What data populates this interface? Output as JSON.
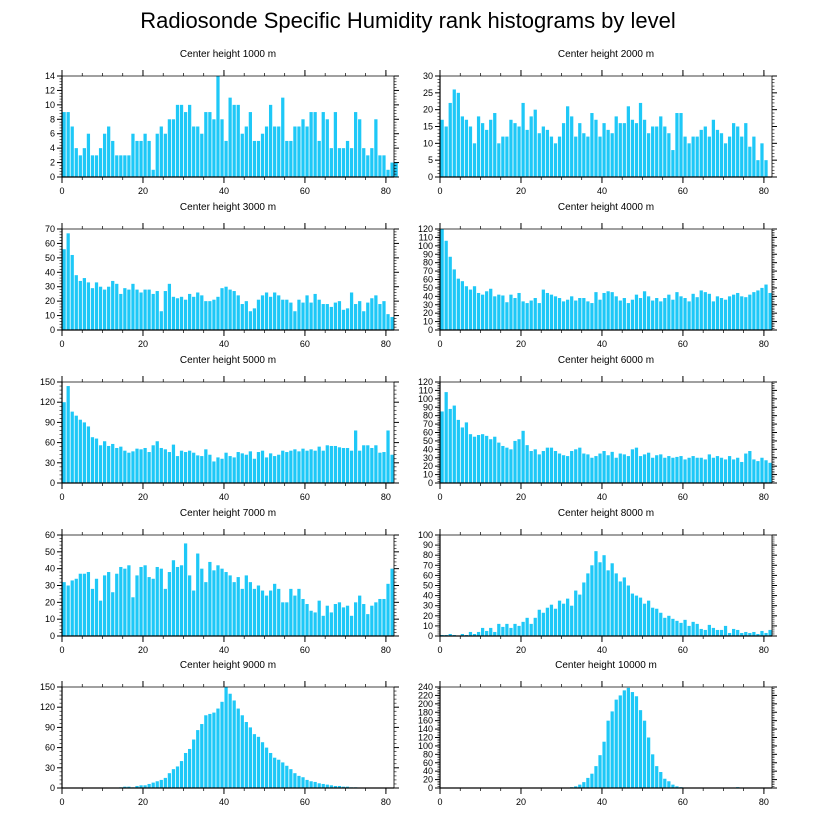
{
  "title": "Radiosonde Specific Humidity rank histograms by level",
  "bar_color": "#1ec8f7",
  "chart_data": [
    {
      "type": "bar",
      "title": "Center height 1000 m",
      "xlim": [
        0,
        82
      ],
      "xticks": [
        0,
        20,
        40,
        60,
        80
      ],
      "ylim": [
        0,
        14
      ],
      "yticks": [
        0,
        2,
        4,
        6,
        8,
        10,
        12,
        14
      ],
      "values": [
        9,
        9,
        7,
        4,
        3,
        4,
        6,
        3,
        3,
        4,
        6,
        7,
        5,
        3,
        3,
        3,
        3,
        6,
        5,
        5,
        6,
        5,
        1,
        6,
        7,
        6,
        8,
        8,
        10,
        10,
        9,
        10,
        7,
        7,
        6,
        9,
        9,
        8,
        14,
        8,
        5,
        11,
        10,
        10,
        6,
        7,
        9,
        5,
        5,
        6,
        7,
        10,
        7,
        7,
        11,
        5,
        5,
        7,
        7,
        8,
        7,
        9,
        9,
        5,
        9,
        8,
        4,
        9,
        4,
        4,
        5,
        4,
        9,
        8,
        4,
        3,
        4,
        8,
        3,
        3,
        1,
        2,
        2
      ]
    },
    {
      "type": "bar",
      "title": "Center height 2000 m",
      "xlim": [
        0,
        82
      ],
      "xticks": [
        0,
        20,
        40,
        60,
        80
      ],
      "ylim": [
        0,
        30
      ],
      "yticks": [
        0,
        5,
        10,
        15,
        20,
        25,
        30
      ],
      "values": [
        17,
        15,
        22,
        26,
        25,
        18,
        17,
        15,
        10,
        18,
        16,
        14,
        17,
        19,
        10,
        12,
        12,
        17,
        16,
        15,
        22,
        14,
        18,
        20,
        13,
        15,
        14,
        12,
        10,
        12,
        16,
        21,
        18,
        12,
        16,
        13,
        12,
        19,
        17,
        12,
        16,
        14,
        13,
        18,
        16,
        16,
        21,
        17,
        16,
        22,
        17,
        13,
        15,
        15,
        18,
        15,
        13,
        8,
        19,
        19,
        12,
        10,
        12,
        12,
        14,
        15,
        12,
        17,
        14,
        13,
        10,
        12,
        16,
        15,
        12,
        16,
        9,
        12,
        5,
        10,
        5
      ]
    },
    {
      "type": "bar",
      "title": "Center height 3000 m",
      "xlim": [
        0,
        82
      ],
      "xticks": [
        0,
        20,
        40,
        60,
        80
      ],
      "ylim": [
        0,
        70
      ],
      "yticks": [
        0,
        10,
        20,
        30,
        40,
        50,
        60,
        70
      ],
      "values": [
        56,
        67,
        52,
        38,
        34,
        36,
        33,
        29,
        33,
        30,
        28,
        30,
        34,
        32,
        25,
        29,
        28,
        32,
        28,
        26,
        28,
        28,
        25,
        27,
        13,
        27,
        32,
        23,
        22,
        23,
        21,
        25,
        23,
        26,
        24,
        20,
        20,
        21,
        23,
        29,
        30,
        28,
        27,
        24,
        18,
        20,
        13,
        15,
        21,
        24,
        26,
        23,
        26,
        24,
        21,
        21,
        19,
        13,
        21,
        19,
        24,
        19,
        25,
        21,
        18,
        18,
        16,
        19,
        20,
        14,
        15,
        26,
        18,
        20,
        13,
        19,
        22,
        24,
        18,
        20,
        11,
        9
      ]
    },
    {
      "type": "bar",
      "title": "Center height 4000 m",
      "xlim": [
        0,
        82
      ],
      "xticks": [
        0,
        20,
        40,
        60,
        80
      ],
      "ylim": [
        0,
        120
      ],
      "yticks": [
        0,
        10,
        20,
        30,
        40,
        50,
        60,
        70,
        80,
        90,
        100,
        110,
        120
      ],
      "values": [
        120,
        106,
        87,
        72,
        61,
        58,
        52,
        48,
        52,
        44,
        42,
        46,
        49,
        40,
        42,
        41,
        33,
        42,
        38,
        44,
        34,
        32,
        35,
        38,
        32,
        48,
        44,
        42,
        40,
        38,
        34,
        36,
        40,
        35,
        38,
        38,
        34,
        32,
        45,
        36,
        44,
        46,
        45,
        40,
        35,
        38,
        32,
        36,
        42,
        38,
        46,
        40,
        35,
        38,
        34,
        38,
        42,
        36,
        45,
        40,
        38,
        34,
        43,
        39,
        47,
        45,
        43,
        34,
        40,
        38,
        36,
        40,
        42,
        44,
        40,
        39,
        42,
        45,
        47,
        50,
        54,
        44
      ]
    },
    {
      "type": "bar",
      "title": "Center height 5000 m",
      "xlim": [
        0,
        82
      ],
      "xticks": [
        0,
        20,
        40,
        60,
        80
      ],
      "ylim": [
        0,
        150
      ],
      "yticks": [
        0,
        30,
        60,
        90,
        120,
        150
      ],
      "values": [
        120,
        144,
        106,
        100,
        94,
        90,
        84,
        68,
        66,
        56,
        62,
        55,
        58,
        52,
        54,
        48,
        45,
        47,
        51,
        50,
        52,
        46,
        56,
        62,
        52,
        50,
        46,
        57,
        40,
        48,
        46,
        48,
        45,
        41,
        40,
        50,
        42,
        32,
        38,
        36,
        45,
        40,
        38,
        46,
        44,
        42,
        47,
        36,
        46,
        48,
        38,
        44,
        40,
        42,
        48,
        46,
        48,
        50,
        47,
        51,
        48,
        50,
        48,
        54,
        48,
        56,
        55,
        55,
        53,
        52,
        52,
        48,
        78,
        48,
        56,
        56,
        52,
        56,
        45,
        46,
        78,
        42
      ]
    },
    {
      "type": "bar",
      "title": "Center height 6000 m",
      "xlim": [
        0,
        82
      ],
      "xticks": [
        0,
        20,
        40,
        60,
        80
      ],
      "ylim": [
        0,
        120
      ],
      "yticks": [
        0,
        10,
        20,
        30,
        40,
        50,
        60,
        70,
        80,
        90,
        100,
        110,
        120
      ],
      "values": [
        85,
        108,
        88,
        92,
        75,
        66,
        72,
        58,
        55,
        57,
        58,
        56,
        52,
        55,
        48,
        44,
        42,
        40,
        50,
        52,
        62,
        45,
        38,
        40,
        34,
        38,
        42,
        42,
        38,
        35,
        33,
        32,
        38,
        40,
        42,
        35,
        34,
        30,
        32,
        35,
        38,
        33,
        37,
        30,
        35,
        34,
        32,
        40,
        42,
        32,
        34,
        36,
        30,
        33,
        34,
        30,
        32,
        30,
        31,
        32,
        28,
        30,
        32,
        30,
        30,
        28,
        34,
        30,
        32,
        30,
        28,
        32,
        28,
        30,
        25,
        35,
        38,
        28,
        26,
        30,
        27,
        24
      ]
    },
    {
      "type": "bar",
      "title": "Center height 7000 m",
      "xlim": [
        0,
        82
      ],
      "xticks": [
        0,
        20,
        40,
        60,
        80
      ],
      "ylim": [
        0,
        60
      ],
      "yticks": [
        0,
        10,
        20,
        30,
        40,
        50,
        60
      ],
      "values": [
        32,
        30,
        33,
        34,
        37,
        37,
        38,
        28,
        34,
        21,
        36,
        38,
        26,
        37,
        41,
        40,
        42,
        23,
        36,
        41,
        42,
        35,
        34,
        41,
        40,
        28,
        38,
        45,
        41,
        42,
        55,
        36,
        27,
        49,
        40,
        32,
        44,
        39,
        42,
        40,
        38,
        36,
        32,
        35,
        28,
        36,
        32,
        28,
        30,
        27,
        24,
        27,
        31,
        28,
        20,
        20,
        28,
        24,
        28,
        22,
        19,
        15,
        14,
        21,
        12,
        18,
        14,
        19,
        20,
        17,
        18,
        12,
        20,
        24,
        19,
        13,
        18,
        20,
        22,
        22,
        31,
        40
      ]
    },
    {
      "type": "bar",
      "title": "Center height 8000 m",
      "xlim": [
        0,
        82
      ],
      "xticks": [
        0,
        20,
        40,
        60,
        80
      ],
      "ylim": [
        0,
        100
      ],
      "yticks": [
        0,
        10,
        20,
        30,
        40,
        50,
        60,
        70,
        80,
        90,
        100
      ],
      "values": [
        1,
        1,
        2,
        1,
        0,
        2,
        1,
        4,
        2,
        4,
        8,
        5,
        8,
        4,
        12,
        9,
        12,
        8,
        12,
        10,
        14,
        18,
        12,
        18,
        26,
        23,
        28,
        31,
        27,
        35,
        32,
        37,
        30,
        45,
        41,
        53,
        62,
        70,
        84,
        73,
        80,
        65,
        72,
        62,
        54,
        58,
        50,
        42,
        40,
        38,
        32,
        35,
        28,
        27,
        23,
        18,
        20,
        17,
        15,
        13,
        16,
        10,
        14,
        12,
        7,
        6,
        11,
        8,
        6,
        6,
        10,
        3,
        7,
        6,
        3,
        4,
        3,
        4,
        2,
        5,
        3,
        6
      ]
    },
    {
      "type": "bar",
      "title": "Center height 9000 m",
      "xlim": [
        0,
        82
      ],
      "xticks": [
        0,
        20,
        40,
        60,
        80
      ],
      "ylim": [
        0,
        150
      ],
      "yticks": [
        0,
        30,
        60,
        90,
        120,
        150
      ],
      "values": [
        0,
        0,
        0,
        0,
        0,
        0,
        0,
        0,
        0,
        0,
        0,
        0,
        0,
        0,
        1,
        2,
        2,
        1,
        3,
        4,
        4,
        6,
        8,
        10,
        12,
        15,
        22,
        28,
        32,
        40,
        52,
        58,
        72,
        86,
        95,
        108,
        110,
        112,
        118,
        128,
        150,
        140,
        130,
        118,
        108,
        98,
        90,
        80,
        76,
        68,
        60,
        52,
        45,
        42,
        38,
        33,
        28,
        22,
        18,
        16,
        12,
        10,
        9,
        7,
        6,
        5,
        4,
        3,
        3,
        2,
        2,
        1,
        1,
        0,
        0,
        0,
        0,
        0,
        0,
        0,
        0
      ]
    },
    {
      "type": "bar",
      "title": "Center height 10000 m",
      "xlim": [
        0,
        82
      ],
      "xticks": [
        0,
        20,
        40,
        60,
        80
      ],
      "ylim": [
        0,
        240
      ],
      "yticks": [
        0,
        20,
        40,
        60,
        80,
        100,
        120,
        140,
        160,
        180,
        200,
        220,
        240
      ],
      "values": [
        0,
        0,
        0,
        0,
        0,
        0,
        0,
        0,
        0,
        0,
        0,
        0,
        0,
        0,
        0,
        0,
        0,
        0,
        0,
        0,
        0,
        0,
        0,
        0,
        0,
        0,
        0,
        0,
        0,
        0,
        0,
        1,
        2,
        4,
        8,
        14,
        24,
        34,
        52,
        78,
        110,
        160,
        182,
        210,
        220,
        232,
        238,
        228,
        218,
        185,
        160,
        120,
        80,
        52,
        38,
        22,
        16,
        8,
        4,
        2,
        1,
        0,
        0,
        0,
        0,
        0,
        0,
        0,
        0,
        0,
        0,
        0,
        1,
        2,
        1,
        1,
        0,
        0,
        0,
        0,
        0
      ]
    }
  ]
}
